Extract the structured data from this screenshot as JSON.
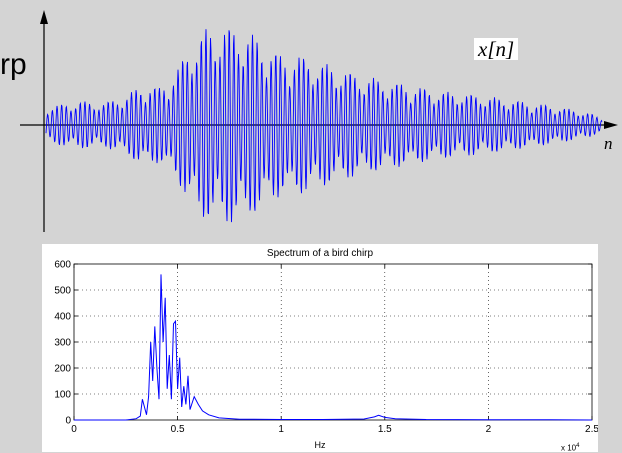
{
  "waveform": {
    "y_axis_label": "rp",
    "signal_label": "x[n]",
    "x_axis_label": "n",
    "line_color": "#0000ff",
    "arrow_color": "#000000"
  },
  "chart_data": {
    "type": "line",
    "title": "Spectrum of a bird chirp",
    "xlabel": "Hz",
    "ylabel": "",
    "x_scale_note": "x 10",
    "x_scale_exp": "4",
    "xlim": [
      0,
      2.5
    ],
    "ylim": [
      0,
      600
    ],
    "xticks": [
      0,
      0.5,
      1,
      1.5,
      2,
      2.5
    ],
    "xtick_labels": [
      "0",
      "0.5",
      "1",
      "1.5",
      "2",
      "2.5"
    ],
    "yticks": [
      0,
      100,
      200,
      300,
      400,
      500,
      600
    ],
    "ytick_labels": [
      "0",
      "100",
      "200",
      "300",
      "400",
      "500",
      "600"
    ],
    "grid": true,
    "line_color": "#0000ff",
    "series": [
      {
        "x": [
          0,
          0.25,
          0.3,
          0.32,
          0.33,
          0.35,
          0.36,
          0.37,
          0.38,
          0.39,
          0.4,
          0.41,
          0.42,
          0.43,
          0.44,
          0.45,
          0.46,
          0.47,
          0.48,
          0.49,
          0.5,
          0.51,
          0.52,
          0.53,
          0.54,
          0.55,
          0.56,
          0.58,
          0.6,
          0.62,
          0.65,
          0.7,
          0.8,
          1.0,
          1.2,
          1.4,
          1.45,
          1.47,
          1.5,
          1.55,
          1.7,
          2.0,
          2.3,
          2.5
        ],
        "y": [
          0,
          0,
          5,
          15,
          80,
          20,
          90,
          300,
          150,
          360,
          200,
          80,
          560,
          300,
          470,
          120,
          250,
          80,
          370,
          380,
          120,
          240,
          50,
          130,
          60,
          170,
          40,
          90,
          60,
          35,
          20,
          8,
          3,
          2,
          2,
          4,
          12,
          18,
          10,
          5,
          2,
          1,
          1,
          0
        ]
      }
    ]
  }
}
